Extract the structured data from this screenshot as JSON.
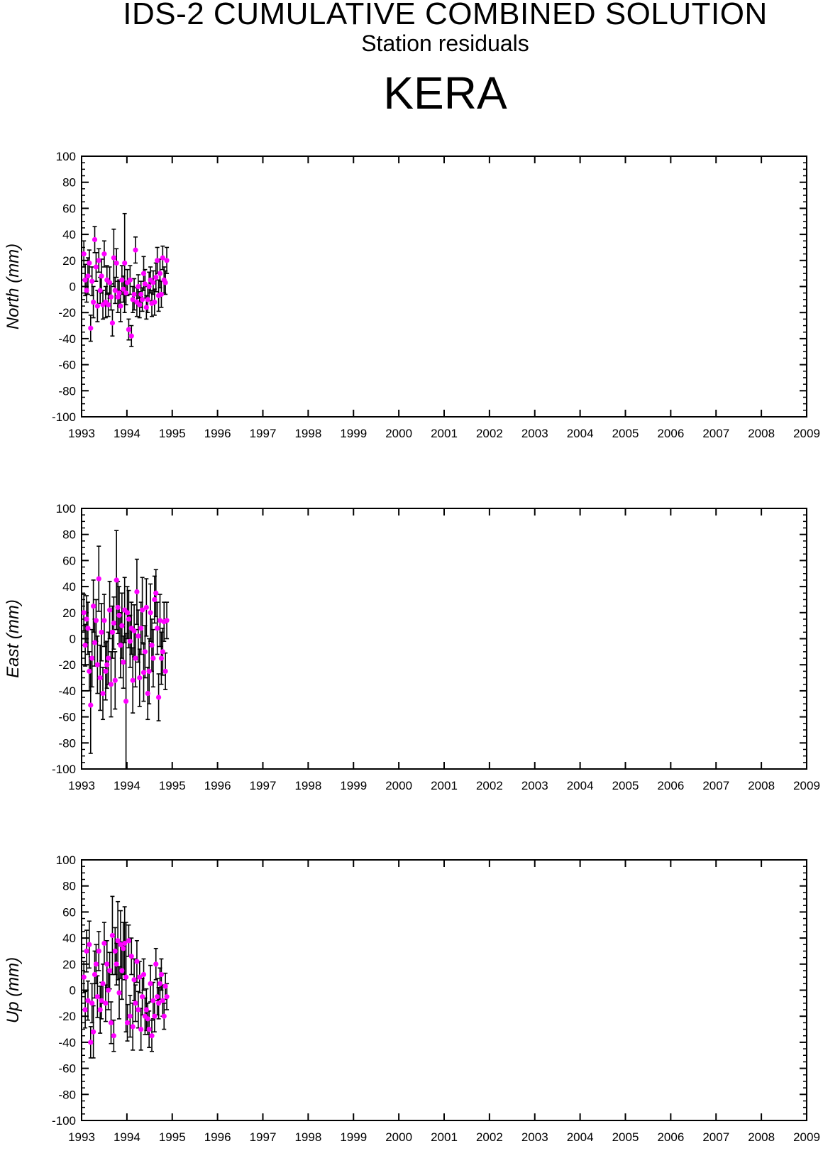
{
  "header": {
    "title": "IDS-2 CUMULATIVE COMBINED SOLUTION",
    "subtitle": "Station residuals",
    "station": "KERA"
  },
  "colors": {
    "point": "#ff00ff",
    "error_bar": "#000000",
    "axes": "#000000"
  },
  "chart_data": [
    {
      "type": "scatter",
      "ylabel": "North (mm)",
      "x_ticks": [
        "1993",
        "1994",
        "1995",
        "1996",
        "1997",
        "1998",
        "1999",
        "2000",
        "2001",
        "2002",
        "2003",
        "2004",
        "2005",
        "2006",
        "2007",
        "2008",
        "2009"
      ],
      "xlim": [
        1993,
        2009
      ],
      "ylim": [
        -100,
        100
      ],
      "y_ticks": [
        100,
        80,
        60,
        40,
        20,
        0,
        -20,
        -40,
        -60,
        -80,
        -100
      ],
      "error_bars": true,
      "series": [
        {
          "x": [
            1993.05,
            1993.08,
            1993.11,
            1993.14,
            1993.17,
            1993.2,
            1993.23,
            1993.26,
            1993.29,
            1993.32,
            1993.35,
            1993.38,
            1993.41,
            1993.44,
            1993.47,
            1993.5,
            1993.53,
            1993.56,
            1993.59,
            1993.62,
            1993.65,
            1993.68,
            1993.71,
            1993.74,
            1993.77,
            1993.8,
            1993.83,
            1993.86,
            1993.89,
            1993.92,
            1993.95,
            1993.98,
            1994.01,
            1994.04,
            1994.07,
            1994.1,
            1994.13,
            1994.16,
            1994.19,
            1994.22,
            1994.25,
            1994.28,
            1994.31,
            1994.34,
            1994.37,
            1994.4,
            1994.43,
            1994.46,
            1994.49,
            1994.52,
            1994.55,
            1994.58,
            1994.61,
            1994.64,
            1994.67,
            1994.7,
            1994.73,
            1994.76,
            1994.79,
            1994.82,
            1994.85,
            1994.88
          ],
          "y": [
            25,
            5,
            -3,
            8,
            18,
            -32,
            4,
            -12,
            36,
            15,
            -15,
            20,
            -3,
            8,
            -14,
            25,
            -12,
            5,
            -14,
            3,
            -8,
            -28,
            22,
            -3,
            18,
            -8,
            -5,
            -15,
            5,
            -2,
            18,
            -5,
            3,
            -33,
            5,
            -38,
            -10,
            -6,
            28,
            -12,
            0,
            -14,
            -6,
            -10,
            10,
            2,
            -16,
            -10,
            0,
            5,
            -13,
            3,
            -12,
            7,
            20,
            -7,
            10,
            -6,
            22,
            5,
            3,
            20
          ],
          "err": [
            10,
            12,
            9,
            14,
            10,
            10,
            11,
            12,
            10,
            11,
            12,
            9,
            10,
            13,
            11,
            10,
            12,
            11,
            9,
            12,
            10,
            10,
            22,
            10,
            11,
            12,
            10,
            12,
            11,
            10,
            38,
            9,
            10,
            8,
            11,
            8,
            10,
            12,
            10,
            11,
            9,
            10,
            10,
            9,
            13,
            11,
            9,
            10,
            11,
            10,
            10,
            9,
            10,
            11,
            10,
            12,
            11,
            10,
            9,
            10,
            9,
            10
          ]
        }
      ]
    },
    {
      "type": "scatter",
      "ylabel": "East (mm)",
      "x_ticks": [
        "1993",
        "1994",
        "1995",
        "1996",
        "1997",
        "1998",
        "1999",
        "2000",
        "2001",
        "2002",
        "2003",
        "2004",
        "2005",
        "2006",
        "2007",
        "2008",
        "2009"
      ],
      "xlim": [
        1993,
        2009
      ],
      "ylim": [
        -100,
        100
      ],
      "y_ticks": [
        100,
        80,
        60,
        40,
        20,
        0,
        -20,
        -40,
        -60,
        -80,
        -100
      ],
      "error_bars": true,
      "series": [
        {
          "x": [
            1993.05,
            1993.08,
            1993.11,
            1993.14,
            1993.17,
            1993.2,
            1993.23,
            1993.26,
            1993.29,
            1993.32,
            1993.35,
            1993.38,
            1993.41,
            1993.44,
            1993.47,
            1993.5,
            1993.53,
            1993.56,
            1993.59,
            1993.62,
            1993.65,
            1993.68,
            1993.71,
            1993.74,
            1993.77,
            1993.8,
            1993.83,
            1993.86,
            1993.89,
            1993.92,
            1993.95,
            1993.98,
            1994.01,
            1994.04,
            1994.07,
            1994.1,
            1994.13,
            1994.16,
            1994.19,
            1994.22,
            1994.25,
            1994.28,
            1994.31,
            1994.34,
            1994.37,
            1994.4,
            1994.43,
            1994.46,
            1994.49,
            1994.52,
            1994.55,
            1994.58,
            1994.61,
            1994.64,
            1994.67,
            1994.7,
            1994.73,
            1994.76,
            1994.79,
            1994.82,
            1994.85,
            1994.88
          ],
          "y": [
            20,
            -5,
            15,
            8,
            -25,
            -51,
            -15,
            25,
            -3,
            14,
            -20,
            46,
            -30,
            5,
            -42,
            14,
            -25,
            -20,
            -15,
            22,
            -35,
            5,
            12,
            -32,
            45,
            24,
            18,
            -5,
            10,
            -18,
            22,
            -48,
            20,
            15,
            -2,
            8,
            -32,
            6,
            -15,
            36,
            2,
            -30,
            8,
            22,
            -26,
            -10,
            24,
            -42,
            -25,
            20,
            -5,
            -15,
            30,
            35,
            8,
            -45,
            14,
            -15,
            -10,
            13,
            -25,
            14
          ],
          "err": [
            14,
            16,
            18,
            20,
            15,
            37,
            22,
            20,
            18,
            16,
            22,
            25,
            25,
            22,
            20,
            20,
            22,
            18,
            20,
            22,
            25,
            20,
            20,
            22,
            38,
            20,
            22,
            25,
            25,
            20,
            25,
            52,
            20,
            22,
            20,
            20,
            25,
            20,
            22,
            25,
            20,
            22,
            20,
            25,
            22,
            20,
            22,
            20,
            25,
            22,
            20,
            22,
            18,
            18,
            20,
            18,
            20,
            20,
            18,
            15,
            14,
            14
          ]
        }
      ]
    },
    {
      "type": "scatter",
      "ylabel": "Up (mm)",
      "x_ticks": [
        "1993",
        "1994",
        "1995",
        "1996",
        "1997",
        "1998",
        "1999",
        "2000",
        "2001",
        "2002",
        "2003",
        "2004",
        "2005",
        "2006",
        "2007",
        "2008",
        "2009"
      ],
      "xlim": [
        1993,
        2009
      ],
      "ylim": [
        -100,
        100
      ],
      "y_ticks": [
        100,
        80,
        60,
        40,
        20,
        0,
        -20,
        -40,
        -60,
        -80,
        -100
      ],
      "error_bars": true,
      "series": [
        {
          "x": [
            1993.05,
            1993.08,
            1993.11,
            1993.14,
            1993.17,
            1993.2,
            1993.23,
            1993.26,
            1993.29,
            1993.32,
            1993.35,
            1993.38,
            1993.41,
            1993.44,
            1993.47,
            1993.5,
            1993.53,
            1993.56,
            1993.59,
            1993.62,
            1993.65,
            1993.68,
            1993.71,
            1993.74,
            1993.77,
            1993.8,
            1993.83,
            1993.86,
            1993.89,
            1993.92,
            1993.95,
            1993.98,
            1994.01,
            1994.04,
            1994.07,
            1994.1,
            1994.13,
            1994.16,
            1994.19,
            1994.22,
            1994.25,
            1994.28,
            1994.31,
            1994.34,
            1994.37,
            1994.4,
            1994.43,
            1994.46,
            1994.49,
            1994.52,
            1994.55,
            1994.58,
            1994.61,
            1994.64,
            1994.67,
            1994.7,
            1994.73,
            1994.76,
            1994.79,
            1994.82,
            1994.85,
            1994.88
          ],
          "y": [
            10,
            -15,
            30,
            -8,
            35,
            -40,
            -10,
            -32,
            12,
            20,
            -5,
            30,
            -15,
            -8,
            5,
            36,
            -10,
            20,
            0,
            15,
            -25,
            42,
            -35,
            30,
            20,
            38,
            -2,
            35,
            15,
            32,
            36,
            10,
            -25,
            38,
            -20,
            26,
            -28,
            8,
            -10,
            22,
            -15,
            10,
            -30,
            -5,
            12,
            -20,
            -15,
            -22,
            -30,
            5,
            -35,
            -8,
            -20,
            20,
            -5,
            -10,
            5,
            12,
            -8,
            -20,
            3,
            -5
          ],
          "err": [
            12,
            14,
            16,
            15,
            18,
            12,
            15,
            20,
            18,
            15,
            16,
            15,
            18,
            14,
            15,
            16,
            14,
            18,
            15,
            14,
            16,
            30,
            12,
            18,
            16,
            30,
            20,
            26,
            22,
            20,
            28,
            42,
            14,
            12,
            16,
            14,
            18,
            16,
            14,
            16,
            14,
            12,
            16,
            14,
            12,
            14,
            16,
            12,
            14,
            14,
            12,
            14,
            12,
            12,
            14,
            12,
            12,
            12,
            12,
            10,
            10,
            10
          ]
        }
      ]
    }
  ]
}
